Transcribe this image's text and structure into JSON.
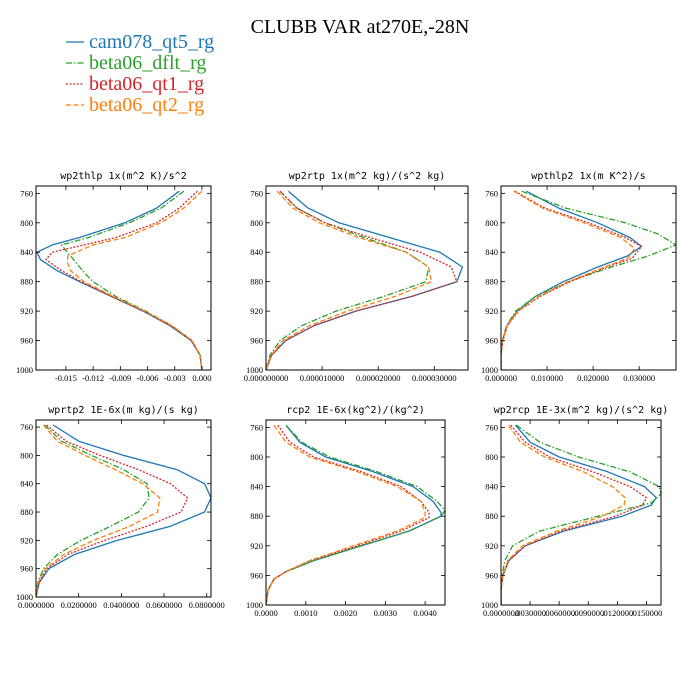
{
  "figure": {
    "title": "CLUBB VAR at270E,-28N",
    "legend": [
      {
        "label": "cam078_qt5_rg",
        "color": "#1f77b4",
        "dash": "solid"
      },
      {
        "label": "beta06_dflt_rg",
        "color": "#2ca02c",
        "dash": "dashdot"
      },
      {
        "label": "beta06_qt1_rg",
        "color": "#d62728",
        "dash": "dotted"
      },
      {
        "label": "beta06_qt2_rg",
        "color": "#ff7f0e",
        "dash": "dashed"
      }
    ]
  },
  "chart_data": [
    {
      "type": "line",
      "title": "wp2thlp  1x(m^2 K)/s^2",
      "ylim": [
        1000,
        750
      ],
      "yticks": [
        760,
        800,
        840,
        880,
        920,
        960,
        1000
      ],
      "xlim": [
        -0.0183,
        0.001
      ],
      "xticks": [
        -0.015,
        -0.012,
        -0.009,
        -0.006,
        -0.003,
        0.0
      ],
      "xtick_labels": [
        "-0.015",
        "-0.012",
        "-0.009",
        "-0.006",
        "-0.003",
        "0.000"
      ],
      "series": [
        {
          "name": "cam078_qt5_rg",
          "y": [
            757,
            780,
            800,
            820,
            830,
            840,
            850,
            865,
            880,
            900,
            920,
            940,
            960,
            980,
            1000
          ],
          "x": [
            -0.0025,
            -0.005,
            -0.0085,
            -0.0135,
            -0.0165,
            -0.0182,
            -0.0178,
            -0.016,
            -0.0135,
            -0.01,
            -0.0065,
            -0.0035,
            -0.0012,
            -0.0002,
            0.0
          ]
        },
        {
          "name": "beta06_dflt_rg",
          "y": [
            757,
            780,
            800,
            820,
            830,
            845,
            860,
            870,
            880,
            900,
            920,
            940,
            960,
            980,
            1000
          ],
          "x": [
            -0.002,
            -0.0045,
            -0.008,
            -0.0125,
            -0.0155,
            -0.0145,
            -0.0135,
            -0.0128,
            -0.012,
            -0.0095,
            -0.0062,
            -0.0033,
            -0.0011,
            -0.0002,
            0.0
          ]
        },
        {
          "name": "beta06_qt1_rg",
          "y": [
            757,
            780,
            800,
            820,
            830,
            840,
            850,
            865,
            880,
            900,
            920,
            940,
            960,
            980,
            1000
          ],
          "x": [
            -0.0005,
            -0.0025,
            -0.005,
            -0.0095,
            -0.013,
            -0.0165,
            -0.0172,
            -0.0155,
            -0.0133,
            -0.01,
            -0.0064,
            -0.0034,
            -0.0011,
            -0.0002,
            0.0
          ]
        },
        {
          "name": "beta06_qt2_rg",
          "y": [
            757,
            780,
            800,
            820,
            830,
            845,
            855,
            865,
            880,
            900,
            920,
            940,
            960,
            980,
            1000
          ],
          "x": [
            0.0,
            -0.002,
            -0.0045,
            -0.0085,
            -0.012,
            -0.0148,
            -0.0148,
            -0.0145,
            -0.013,
            -0.0098,
            -0.0063,
            -0.0033,
            -0.0011,
            -0.0002,
            0.0
          ]
        }
      ]
    },
    {
      "type": "line",
      "title": "wp2rtp  1x(m^2 kg)/(s^2 kg)",
      "ylim": [
        1000,
        750
      ],
      "yticks": [
        760,
        800,
        840,
        880,
        920,
        960,
        1000
      ],
      "xlim": [
        0.0,
        3.6e-05
      ],
      "xticks": [
        0.0,
        1e-05,
        2e-05,
        3e-05
      ],
      "xtick_labels": [
        "0.000000000",
        "0.000010000",
        "0.000020000",
        "0.000030000"
      ],
      "series": [
        {
          "name": "cam078_qt5_rg",
          "y": [
            757,
            780,
            800,
            820,
            840,
            860,
            880,
            900,
            920,
            940,
            960,
            980,
            1000
          ],
          "x": [
            4e-06,
            7.5e-06,
            1.3e-05,
            2.2e-05,
            3.1e-05,
            3.5e-05,
            3.4e-05,
            2.6e-05,
            1.6e-05,
            8.5e-06,
            3.5e-06,
            1e-06,
            0.0
          ]
        },
        {
          "name": "beta06_dflt_rg",
          "y": [
            757,
            780,
            800,
            820,
            840,
            860,
            880,
            900,
            920,
            940,
            960,
            980,
            1000
          ],
          "x": [
            2.5e-06,
            5.5e-06,
            1.05e-05,
            1.75e-05,
            2.5e-05,
            2.9e-05,
            2.85e-05,
            2.1e-05,
            1.25e-05,
            6.3e-06,
            2.5e-06,
            7e-07,
            0.0
          ]
        },
        {
          "name": "beta06_qt1_rg",
          "y": [
            757,
            780,
            800,
            820,
            840,
            860,
            880,
            900,
            920,
            940,
            960,
            980,
            1000
          ],
          "x": [
            2.5e-06,
            5.5e-06,
            1.05e-05,
            1.85e-05,
            2.75e-05,
            3.3e-05,
            3.4e-05,
            2.6e-05,
            1.6e-05,
            8.5e-06,
            3.5e-06,
            1e-06,
            0.0
          ]
        },
        {
          "name": "beta06_qt2_rg",
          "y": [
            757,
            780,
            800,
            820,
            840,
            860,
            880,
            900,
            920,
            940,
            960,
            980,
            1000
          ],
          "x": [
            2e-06,
            4.8e-06,
            9.5e-06,
            1.65e-05,
            2.5e-05,
            2.9e-05,
            2.95e-05,
            2.3e-05,
            1.45e-05,
            7.7e-06,
            3e-06,
            9e-07,
            0.0
          ]
        }
      ]
    },
    {
      "type": "line",
      "title": "wpthlp2  1x(m K^2)/s",
      "ylim": [
        1000,
        750
      ],
      "yticks": [
        760,
        800,
        840,
        880,
        920,
        960,
        1000
      ],
      "xlim": [
        0.0,
        0.038
      ],
      "xticks": [
        0.0,
        0.01,
        0.02,
        0.03
      ],
      "xtick_labels": [
        "0.000000",
        "0.010000",
        "0.020000",
        "0.030000"
      ],
      "series": [
        {
          "name": "cam078_qt5_rg",
          "y": [
            757,
            780,
            800,
            820,
            832,
            845,
            860,
            880,
            900,
            920,
            940,
            960,
            980,
            1000
          ],
          "x": [
            0.0055,
            0.0125,
            0.021,
            0.028,
            0.0305,
            0.0275,
            0.021,
            0.0135,
            0.0075,
            0.0035,
            0.0013,
            0.0003,
            0.0,
            0.0
          ]
        },
        {
          "name": "beta06_dflt_rg",
          "y": [
            757,
            780,
            800,
            815,
            830,
            845,
            860,
            878,
            900,
            920,
            940,
            960,
            980,
            1000
          ],
          "x": [
            0.0045,
            0.014,
            0.027,
            0.034,
            0.038,
            0.032,
            0.024,
            0.0155,
            0.0075,
            0.0032,
            0.0012,
            0.0003,
            0.0,
            0.0
          ]
        },
        {
          "name": "beta06_qt1_rg",
          "y": [
            757,
            780,
            800,
            820,
            832,
            848,
            860,
            880,
            900,
            920,
            940,
            960,
            980,
            1000
          ],
          "x": [
            0.003,
            0.0095,
            0.019,
            0.027,
            0.0305,
            0.0285,
            0.023,
            0.015,
            0.0085,
            0.0038,
            0.0014,
            0.0004,
            0.0,
            0.0
          ]
        },
        {
          "name": "beta06_qt2_rg",
          "y": [
            757,
            780,
            800,
            820,
            835,
            848,
            860,
            880,
            900,
            920,
            940,
            960,
            980,
            1000
          ],
          "x": [
            0.0028,
            0.009,
            0.018,
            0.026,
            0.029,
            0.0275,
            0.0225,
            0.0145,
            0.0082,
            0.0037,
            0.0013,
            0.0003,
            0.0,
            0.0
          ]
        }
      ]
    },
    {
      "type": "line",
      "title": "wprtp2  1E-6x(m kg)/(s kg)",
      "ylim": [
        1000,
        750
      ],
      "yticks": [
        760,
        800,
        840,
        880,
        920,
        960,
        1000
      ],
      "xlim": [
        0.0,
        0.082
      ],
      "xticks": [
        0.0,
        0.02,
        0.04,
        0.06,
        0.08
      ],
      "xtick_labels": [
        "0.0000000",
        "0.0200000",
        "0.0400000",
        "0.0600000",
        "0.0800000"
      ],
      "series": [
        {
          "name": "cam078_qt5_rg",
          "y": [
            757,
            780,
            800,
            820,
            840,
            860,
            880,
            900,
            920,
            940,
            960,
            980,
            1000
          ],
          "x": [
            0.008,
            0.02,
            0.041,
            0.066,
            0.079,
            0.082,
            0.079,
            0.063,
            0.038,
            0.018,
            0.006,
            0.0015,
            0.0
          ]
        },
        {
          "name": "beta06_dflt_rg",
          "y": [
            757,
            780,
            800,
            820,
            840,
            860,
            880,
            900,
            920,
            940,
            960,
            980,
            1000
          ],
          "x": [
            0.004,
            0.012,
            0.026,
            0.041,
            0.052,
            0.053,
            0.048,
            0.035,
            0.021,
            0.01,
            0.0035,
            0.0008,
            0.0
          ]
        },
        {
          "name": "beta06_qt1_rg",
          "y": [
            757,
            780,
            800,
            820,
            840,
            860,
            880,
            900,
            920,
            940,
            960,
            980,
            1000
          ],
          "x": [
            0.005,
            0.014,
            0.03,
            0.048,
            0.063,
            0.071,
            0.068,
            0.052,
            0.032,
            0.015,
            0.005,
            0.0012,
            0.0
          ]
        },
        {
          "name": "beta06_qt2_rg",
          "y": [
            757,
            780,
            800,
            820,
            840,
            860,
            880,
            900,
            920,
            940,
            960,
            980,
            1000
          ],
          "x": [
            0.0035,
            0.01,
            0.023,
            0.037,
            0.05,
            0.058,
            0.057,
            0.044,
            0.027,
            0.013,
            0.0045,
            0.001,
            0.0
          ]
        }
      ]
    },
    {
      "type": "line",
      "title": "rcp2  1E-6x(kg^2)/(kg^2)",
      "ylim": [
        1000,
        750
      ],
      "yticks": [
        760,
        800,
        840,
        880,
        920,
        960,
        1000
      ],
      "xlim": [
        0.0,
        0.0045
      ],
      "xticks": [
        0.0,
        0.001,
        0.002,
        0.003,
        0.004
      ],
      "xtick_labels": [
        "0.0000",
        "0.0010",
        "0.0020",
        "0.0030",
        "0.0040"
      ],
      "series": [
        {
          "name": "cam078_qt5_rg",
          "y": [
            757,
            780,
            800,
            820,
            840,
            860,
            875,
            880,
            900,
            920,
            940,
            955,
            965,
            980,
            1000
          ],
          "x": [
            0.0005,
            0.00085,
            0.0015,
            0.0027,
            0.0037,
            0.0042,
            0.0044,
            0.0044,
            0.0036,
            0.0024,
            0.0012,
            0.0005,
            0.0002,
            5e-05,
            0.0
          ]
        },
        {
          "name": "beta06_dflt_rg",
          "y": [
            757,
            780,
            800,
            820,
            840,
            860,
            872,
            880,
            900,
            920,
            940,
            955,
            965,
            980,
            1000
          ],
          "x": [
            0.0005,
            0.0009,
            0.0016,
            0.0028,
            0.0038,
            0.0043,
            0.0045,
            0.0044,
            0.0036,
            0.0024,
            0.0012,
            0.0005,
            0.0002,
            5e-05,
            0.0
          ]
        },
        {
          "name": "beta06_qt1_rg",
          "y": [
            757,
            780,
            800,
            820,
            840,
            860,
            875,
            882,
            900,
            920,
            940,
            955,
            965,
            980,
            1000
          ],
          "x": [
            0.0003,
            0.0006,
            0.0012,
            0.0024,
            0.0034,
            0.0039,
            0.0041,
            0.0041,
            0.0034,
            0.0023,
            0.0011,
            0.0005,
            0.0002,
            5e-05,
            0.0
          ]
        },
        {
          "name": "beta06_qt2_rg",
          "y": [
            757,
            780,
            800,
            820,
            840,
            860,
            875,
            882,
            900,
            920,
            940,
            955,
            965,
            980,
            1000
          ],
          "x": [
            0.0002,
            0.0005,
            0.0011,
            0.0023,
            0.0033,
            0.0039,
            0.004,
            0.004,
            0.0033,
            0.0022,
            0.0011,
            0.0005,
            0.0002,
            5e-05,
            0.0
          ]
        }
      ]
    },
    {
      "type": "line",
      "title": "wp2rcp  1E-3x(m^2 kg)/(s^2 kg)",
      "ylim": [
        1000,
        750
      ],
      "yticks": [
        760,
        800,
        840,
        880,
        920,
        960,
        1000
      ],
      "xlim": [
        0.0,
        0.0165
      ],
      "xticks": [
        0.0,
        0.003,
        0.006,
        0.009,
        0.012,
        0.015
      ],
      "xtick_labels": [
        "0.0000000",
        ".0030000",
        ".0060000",
        ".0090000",
        ".0120000",
        ".0150000"
      ],
      "series": [
        {
          "name": "cam078_qt5_rg",
          "y": [
            757,
            780,
            800,
            820,
            840,
            855,
            865,
            880,
            900,
            920,
            940,
            960,
            980,
            1000
          ],
          "x": [
            0.0015,
            0.003,
            0.006,
            0.011,
            0.0148,
            0.016,
            0.0155,
            0.0125,
            0.0065,
            0.0025,
            0.0008,
            0.0002,
            0.0,
            0.0
          ]
        },
        {
          "name": "beta06_dflt_rg",
          "y": [
            757,
            780,
            800,
            820,
            840,
            850,
            862,
            880,
            900,
            920,
            940,
            960,
            980,
            1000
          ],
          "x": [
            0.0016,
            0.004,
            0.008,
            0.0133,
            0.0163,
            0.0165,
            0.0155,
            0.01,
            0.004,
            0.0012,
            0.0004,
            0.0001,
            0.0,
            0.0
          ]
        },
        {
          "name": "beta06_qt1_rg",
          "y": [
            757,
            780,
            800,
            820,
            840,
            855,
            865,
            880,
            900,
            920,
            940,
            960,
            980,
            1000
          ],
          "x": [
            0.001,
            0.0025,
            0.005,
            0.0095,
            0.0133,
            0.015,
            0.0146,
            0.0118,
            0.0062,
            0.0025,
            0.0008,
            0.0002,
            0.0,
            0.0
          ]
        },
        {
          "name": "beta06_qt2_rg",
          "y": [
            757,
            780,
            800,
            820,
            840,
            855,
            865,
            880,
            900,
            920,
            940,
            960,
            980,
            1000
          ],
          "x": [
            0.0008,
            0.002,
            0.0045,
            0.0085,
            0.0115,
            0.0128,
            0.0127,
            0.0105,
            0.0058,
            0.0022,
            0.0007,
            0.0002,
            0.0,
            0.0
          ]
        }
      ]
    }
  ]
}
